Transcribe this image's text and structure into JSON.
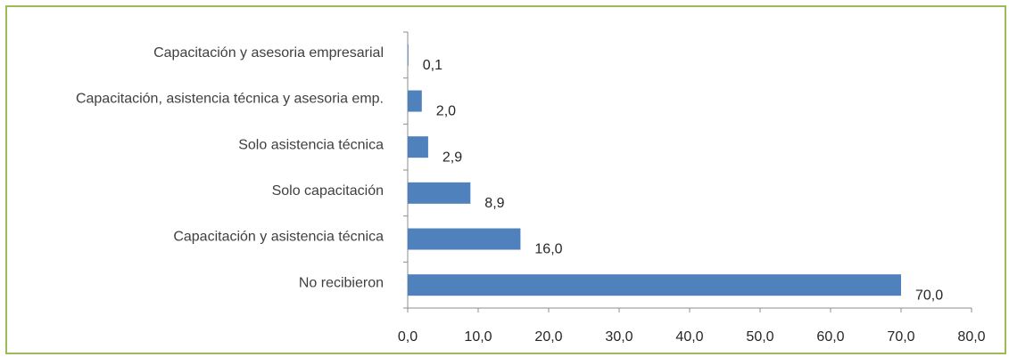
{
  "chart_data": {
    "type": "bar",
    "orientation": "horizontal",
    "title": "",
    "xlabel": "",
    "ylabel": "",
    "categories": [
      "Capacitación y asesoria empresarial",
      "Capacitación, asistencia técnica y asesoria emp.",
      "Solo asistencia técnica",
      "Solo capacitación",
      "Capacitación y asistencia técnica",
      "No recibieron"
    ],
    "values": [
      0.1,
      2.0,
      2.9,
      8.9,
      16.0,
      70.0
    ],
    "value_labels": [
      "0,1",
      "2,0",
      "2,9",
      "8,9",
      "16,0",
      "70,0"
    ],
    "xlim": [
      0,
      80
    ],
    "x_ticks": [
      0,
      10,
      20,
      30,
      40,
      50,
      60,
      70,
      80
    ],
    "x_tick_labels": [
      "0,0",
      "10,0",
      "20,0",
      "30,0",
      "40,0",
      "50,0",
      "60,0",
      "70,0",
      "80,0"
    ],
    "grid": false,
    "legend": "none",
    "bar_color": "#4f81bd",
    "frame_color": "#9bbb59"
  }
}
